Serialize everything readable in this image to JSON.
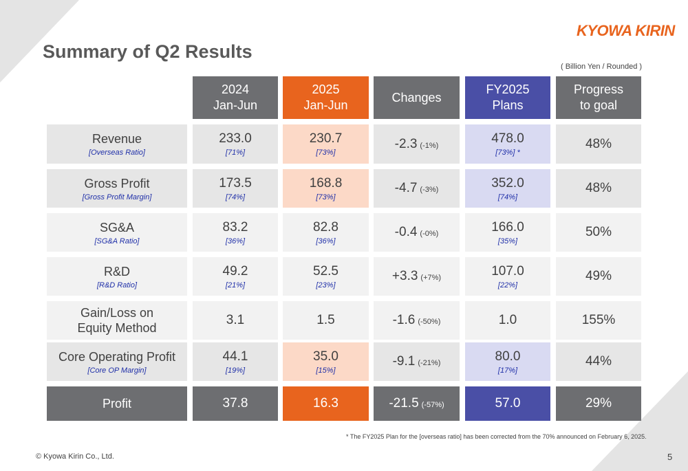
{
  "header": {
    "title": "Summary of Q2 Results",
    "logo": "KYOWA KIRIN",
    "unit_note": "( Billion Yen / Rounded )"
  },
  "table": {
    "columns": [
      [
        "2024",
        "Jan-Jun"
      ],
      [
        "2025",
        "Jan-Jun"
      ],
      [
        "Changes"
      ],
      [
        "FY2025",
        "Plans"
      ],
      [
        "Progress",
        "to goal"
      ]
    ],
    "rows": [
      {
        "label": [
          "Revenue"
        ],
        "sub": "[Overseas Ratio]",
        "y2024": "233.0",
        "r2024": "[71%]",
        "y2025": "230.7",
        "r2025": "[73%]",
        "change": "-2.3",
        "change_pct": "(-1%)",
        "plan": "478.0",
        "plan_ratio": "[73%] *",
        "progress": "48%"
      },
      {
        "label": [
          "Gross Profit"
        ],
        "sub": "[Gross Profit Margin]",
        "y2024": "173.5",
        "r2024": "[74%]",
        "y2025": "168.8",
        "r2025": "[73%]",
        "change": "-4.7",
        "change_pct": "(-3%)",
        "plan": "352.0",
        "plan_ratio": "[74%]",
        "progress": "48%"
      },
      {
        "label": [
          "SG&A"
        ],
        "sub": "[SG&A Ratio]",
        "y2024": "83.2",
        "r2024": "[36%]",
        "y2025": "82.8",
        "r2025": "[36%]",
        "change": "-0.4",
        "change_pct": "(-0%)",
        "plan": "166.0",
        "plan_ratio": "[35%]",
        "progress": "50%"
      },
      {
        "label": [
          "R&D"
        ],
        "sub": "[R&D Ratio]",
        "y2024": "49.2",
        "r2024": "[21%]",
        "y2025": "52.5",
        "r2025": "[23%]",
        "change": "+3.3",
        "change_pct": "(+7%)",
        "plan": "107.0",
        "plan_ratio": "[22%]",
        "progress": "49%"
      },
      {
        "label": [
          "Gain/Loss on",
          "Equity Method"
        ],
        "y2024": "3.1",
        "y2025": "1.5",
        "change": "-1.6",
        "change_pct": "(-50%)",
        "plan": "1.0",
        "progress": "155%"
      },
      {
        "label": [
          "Core Operating Profit"
        ],
        "sub": "[Core OP Margin]",
        "y2024": "44.1",
        "r2024": "[19%]",
        "y2025": "35.0",
        "r2025": "[15%]",
        "change": "-9.1",
        "change_pct": "(-21%)",
        "plan": "80.0",
        "plan_ratio": "[17%]",
        "progress": "44%"
      },
      {
        "label": [
          "Profit"
        ],
        "y2024": "37.8",
        "y2025": "16.3",
        "change": "-21.5",
        "change_pct": "(-57%)",
        "plan": "57.0",
        "progress": "29%"
      }
    ]
  },
  "footnote": "* The FY2025 Plan for the [overseas ratio] has been corrected from the 70% announced on February 6, 2025.",
  "footer": {
    "copyright": "© Kyowa Kirin Co., Ltd.",
    "page": "5"
  }
}
